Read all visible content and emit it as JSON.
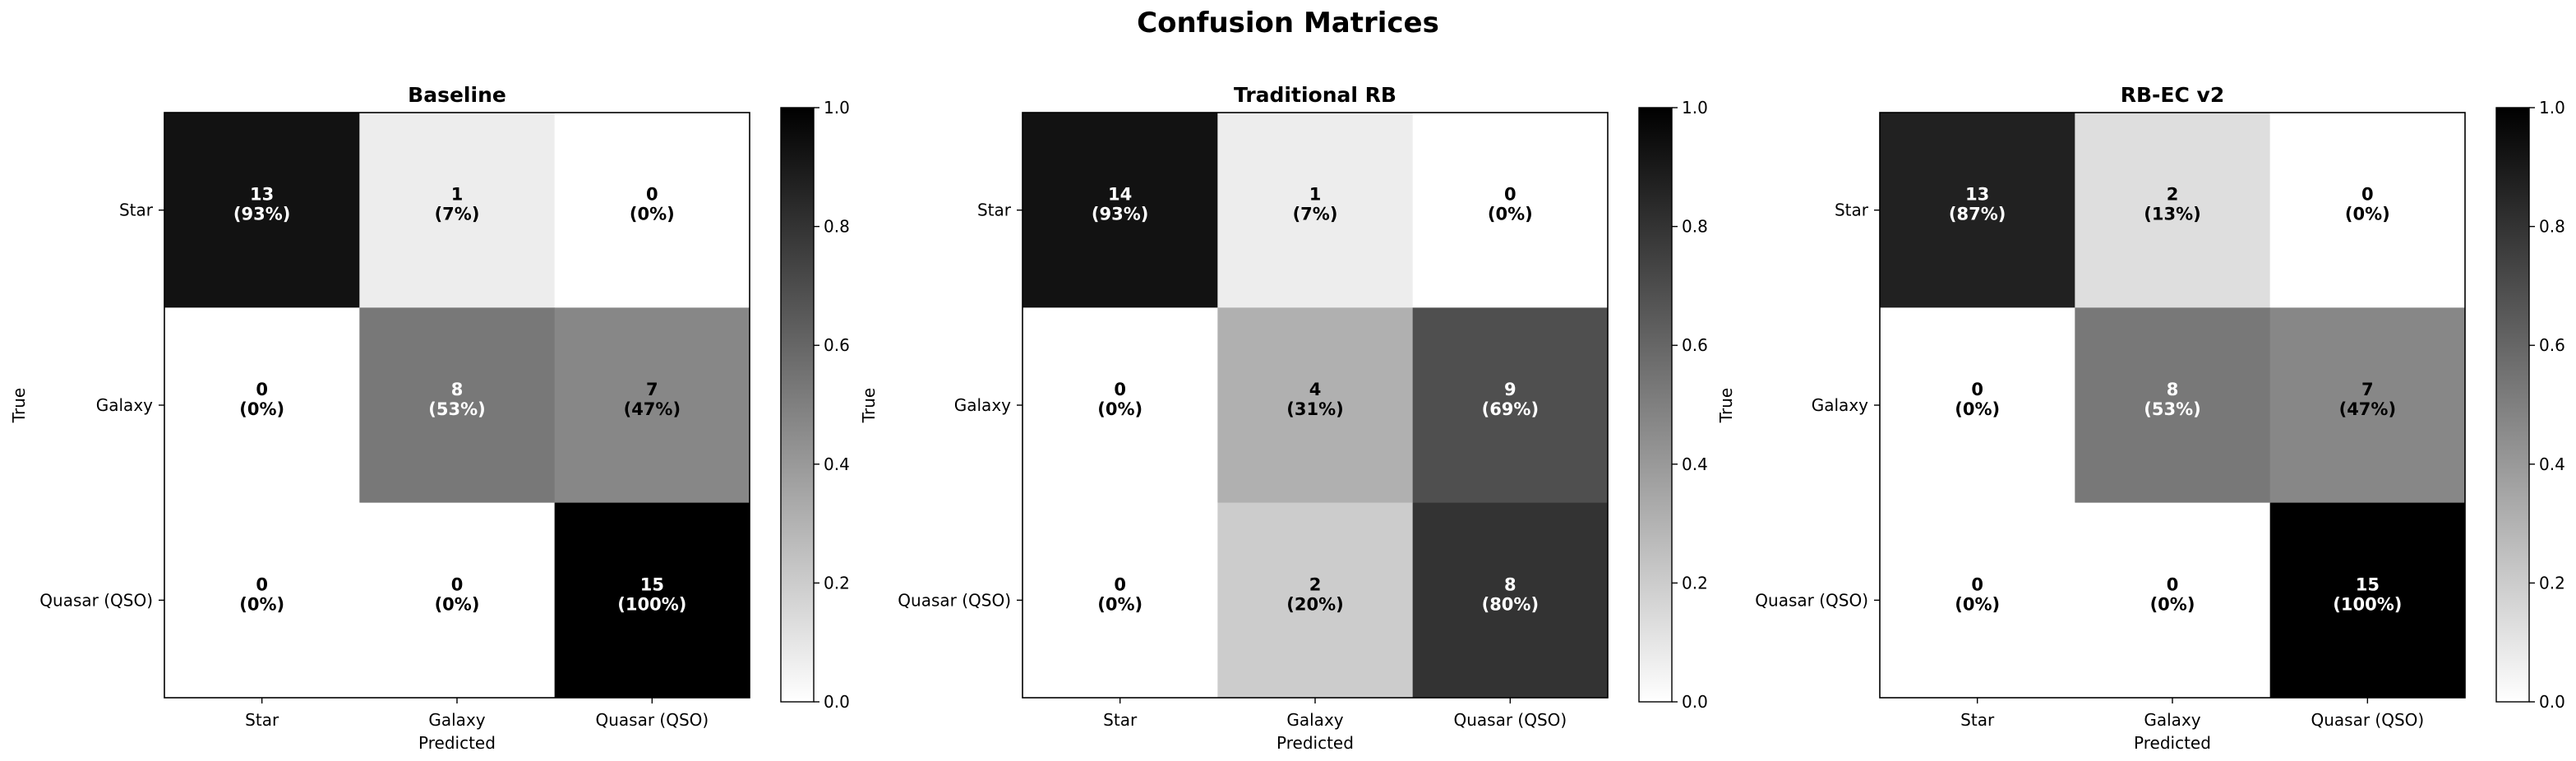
{
  "figure": {
    "title": "Confusion Matrices"
  },
  "chart_data": [
    {
      "type": "heatmap",
      "title": "Baseline",
      "xlabel": "Predicted",
      "ylabel": "True",
      "x_categories": [
        "Star",
        "Galaxy",
        "Quasar (QSO)"
      ],
      "y_categories": [
        "Star",
        "Galaxy",
        "Quasar (QSO)"
      ],
      "counts": [
        [
          13,
          1,
          0
        ],
        [
          0,
          8,
          7
        ],
        [
          0,
          0,
          15
        ]
      ],
      "cell_labels": [
        [
          "13\n(93%)",
          "1\n(7%)",
          "0\n(0%)"
        ],
        [
          "0\n(0%)",
          "8\n(53%)",
          "7\n(47%)"
        ],
        [
          "0\n(0%)",
          "0\n(0%)",
          "15\n(100%)"
        ]
      ],
      "normalized": [
        [
          0.93,
          0.07,
          0.0
        ],
        [
          0.0,
          0.53,
          0.47
        ],
        [
          0.0,
          0.0,
          1.0
        ]
      ],
      "colormap": "Greys",
      "colorbar": {
        "range": [
          0.0,
          1.0
        ],
        "ticks": [
          "0.0",
          "0.2",
          "0.4",
          "0.6",
          "0.8",
          "1.0"
        ]
      }
    },
    {
      "type": "heatmap",
      "title": "Traditional RB",
      "xlabel": "Predicted",
      "ylabel": "True",
      "x_categories": [
        "Star",
        "Galaxy",
        "Quasar (QSO)"
      ],
      "y_categories": [
        "Star",
        "Galaxy",
        "Quasar (QSO)"
      ],
      "counts": [
        [
          14,
          1,
          0
        ],
        [
          0,
          4,
          9
        ],
        [
          0,
          2,
          8
        ]
      ],
      "cell_labels": [
        [
          "14\n(93%)",
          "1\n(7%)",
          "0\n(0%)"
        ],
        [
          "0\n(0%)",
          "4\n(31%)",
          "9\n(69%)"
        ],
        [
          "0\n(0%)",
          "2\n(20%)",
          "8\n(80%)"
        ]
      ],
      "normalized": [
        [
          0.93,
          0.07,
          0.0
        ],
        [
          0.0,
          0.31,
          0.69
        ],
        [
          0.0,
          0.2,
          0.8
        ]
      ],
      "colormap": "Greys",
      "colorbar": {
        "range": [
          0.0,
          1.0
        ],
        "ticks": [
          "0.0",
          "0.2",
          "0.4",
          "0.6",
          "0.8",
          "1.0"
        ]
      }
    },
    {
      "type": "heatmap",
      "title": "RB-EC v2",
      "xlabel": "Predicted",
      "ylabel": "True",
      "x_categories": [
        "Star",
        "Galaxy",
        "Quasar (QSO)"
      ],
      "y_categories": [
        "Star",
        "Galaxy",
        "Quasar (QSO)"
      ],
      "counts": [
        [
          13,
          2,
          0
        ],
        [
          0,
          8,
          7
        ],
        [
          0,
          0,
          15
        ]
      ],
      "cell_labels": [
        [
          "13\n(87%)",
          "2\n(13%)",
          "0\n(0%)"
        ],
        [
          "0\n(0%)",
          "8\n(53%)",
          "7\n(47%)"
        ],
        [
          "0\n(0%)",
          "0\n(0%)",
          "15\n(100%)"
        ]
      ],
      "normalized": [
        [
          0.87,
          0.13,
          0.0
        ],
        [
          0.0,
          0.53,
          0.47
        ],
        [
          0.0,
          0.0,
          1.0
        ]
      ],
      "colormap": "Greys",
      "colorbar": {
        "range": [
          0.0,
          1.0
        ],
        "ticks": [
          "0.0",
          "0.2",
          "0.4",
          "0.6",
          "0.8",
          "1.0"
        ]
      }
    }
  ]
}
